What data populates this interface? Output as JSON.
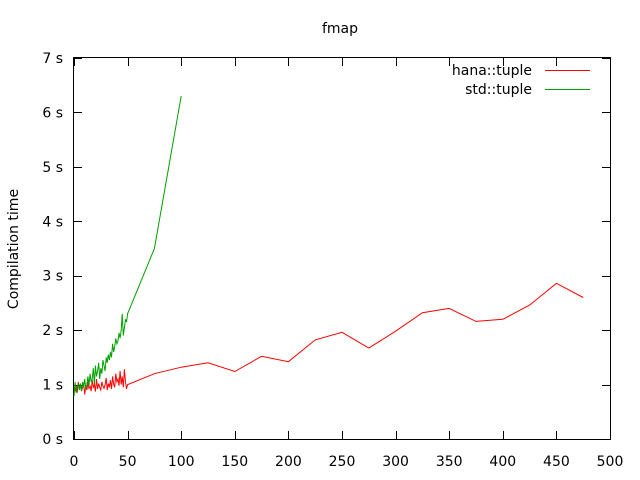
{
  "chart_data": {
    "type": "line",
    "title": "fmap",
    "xlabel": "",
    "ylabel": "Compilation time",
    "xlim": [
      0,
      500
    ],
    "ylim": [
      0,
      7
    ],
    "x_ticks": [
      0,
      50,
      100,
      150,
      200,
      250,
      300,
      350,
      400,
      450,
      500
    ],
    "y_ticks": [
      0,
      1,
      2,
      3,
      4,
      5,
      6,
      7
    ],
    "y_tick_suffix": " s",
    "grid": false,
    "legend_position": "top-right",
    "series": [
      {
        "name": "hana::tuple",
        "color": "#ff0000",
        "x": [
          0,
          1,
          2,
          3,
          4,
          5,
          6,
          7,
          8,
          9,
          10,
          11,
          12,
          13,
          14,
          15,
          16,
          17,
          18,
          19,
          20,
          21,
          22,
          23,
          24,
          25,
          26,
          27,
          28,
          29,
          30,
          31,
          32,
          33,
          34,
          35,
          36,
          37,
          38,
          39,
          40,
          41,
          42,
          43,
          44,
          45,
          46,
          47,
          48,
          49,
          50,
          75,
          100,
          125,
          150,
          175,
          200,
          225,
          250,
          275,
          300,
          325,
          350,
          375,
          400,
          425,
          450,
          475
        ],
        "y": [
          0.95,
          0.9,
          0.98,
          0.85,
          1.05,
          0.92,
          1.0,
          0.88,
          0.95,
          1.02,
          0.82,
          0.98,
          0.9,
          1.05,
          0.93,
          0.97,
          0.88,
          1.08,
          0.95,
          1.0,
          0.87,
          1.1,
          0.92,
          1.02,
          0.95,
          0.9,
          1.05,
          0.98,
          0.93,
          1.0,
          1.12,
          0.9,
          1.02,
          0.95,
          1.08,
          0.92,
          1.15,
          1.0,
          0.95,
          1.2,
          1.05,
          1.1,
          0.98,
          1.25,
          1.0,
          1.15,
          0.95,
          1.28,
          1.05,
          0.92,
          1.0,
          1.2,
          1.32,
          1.4,
          1.24,
          1.52,
          1.42,
          1.82,
          1.96,
          1.67,
          1.98,
          2.32,
          2.4,
          2.16,
          2.2,
          2.46,
          2.86,
          2.6
        ]
      },
      {
        "name": "std::tuple",
        "color": "#00a000",
        "x": [
          0,
          1,
          2,
          3,
          4,
          5,
          6,
          7,
          8,
          9,
          10,
          11,
          12,
          13,
          14,
          15,
          16,
          17,
          18,
          19,
          20,
          21,
          22,
          23,
          24,
          25,
          26,
          27,
          28,
          29,
          30,
          31,
          32,
          33,
          34,
          35,
          36,
          37,
          38,
          39,
          40,
          41,
          42,
          43,
          44,
          45,
          46,
          47,
          48,
          49,
          50,
          75,
          100
        ],
        "y": [
          0.78,
          1.05,
          0.85,
          0.95,
          1.0,
          0.9,
          1.02,
          0.88,
          1.05,
          0.95,
          1.1,
          0.92,
          1.0,
          1.15,
          0.98,
          1.2,
          1.05,
          1.1,
          1.3,
          1.0,
          1.35,
          1.15,
          1.25,
          1.4,
          1.1,
          1.3,
          1.2,
          1.45,
          1.35,
          1.25,
          1.5,
          1.4,
          1.55,
          1.45,
          1.6,
          1.5,
          1.75,
          1.6,
          1.7,
          1.85,
          1.75,
          1.8,
          1.95,
          1.85,
          2.0,
          2.3,
          1.9,
          2.05,
          2.2,
          2.15,
          2.3,
          3.5,
          6.3
        ]
      }
    ]
  }
}
